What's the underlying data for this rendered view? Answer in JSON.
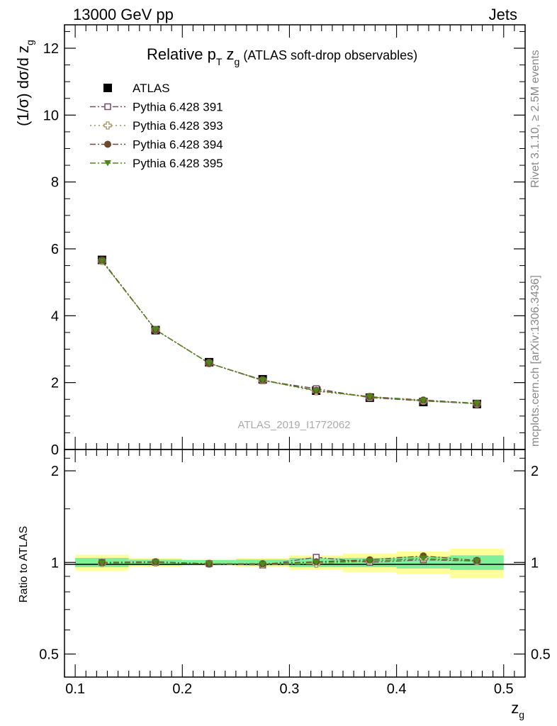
{
  "header": {
    "left": "13000 GeV pp",
    "right": "Jets"
  },
  "plot": {
    "title_main": "Relative p",
    "title_sub_T": "T",
    "title_z": " z",
    "title_sub_g": "g",
    "title_rest": " (ATLAS soft-drop observables)",
    "ylabel_main": "(1/σ) dσ/d z",
    "ylabel_sub": "g",
    "watermark": "ATLAS_2019_I1772062",
    "side_text_top": "Rivet 3.1.10, ≥ 2.5M events",
    "side_text_bottom": "mcplots.cern.ch [arXiv:1306.3436]"
  },
  "ratio": {
    "ylabel": "Ratio to ATLAS"
  },
  "chart_data": [
    {
      "type": "scatter",
      "panel": "main",
      "xlabel": "z",
      "xlabel_sub": "g",
      "ylim": [
        0,
        12.7
      ],
      "xlim": [
        0.09,
        0.52
      ],
      "yticks": [
        0,
        2,
        4,
        6,
        8,
        10,
        12
      ],
      "ytick_labels": [
        "0",
        "2",
        "4",
        "6",
        "8",
        "10",
        "12"
      ],
      "bin_edges": [
        0.1,
        0.15,
        0.2,
        0.25,
        0.3,
        0.35,
        0.4,
        0.45,
        0.5
      ],
      "x": [
        0.125,
        0.175,
        0.225,
        0.275,
        0.325,
        0.375,
        0.425,
        0.475
      ],
      "legend_position": "top-left",
      "series": [
        {
          "name": "ATLAS",
          "color": "#000000",
          "marker": "square-filled",
          "values": [
            5.67,
            3.57,
            2.61,
            2.1,
            1.76,
            1.55,
            1.42,
            1.36
          ]
        },
        {
          "name": "Pythia 6.428 391",
          "color": "#7b4a6b",
          "marker": "square-open",
          "line": "dash-dot",
          "values": [
            5.65,
            3.58,
            2.58,
            2.06,
            1.82,
            1.55,
            1.45,
            1.37
          ]
        },
        {
          "name": "Pythia 6.428 393",
          "color": "#a89060",
          "marker": "cross-open",
          "line": "dot",
          "values": [
            5.64,
            3.58,
            2.58,
            2.07,
            1.74,
            1.57,
            1.46,
            1.37
          ]
        },
        {
          "name": "Pythia 6.428 394",
          "color": "#6b4a2e",
          "marker": "circle-filled",
          "line": "dash-dot",
          "values": [
            5.66,
            3.58,
            2.58,
            2.08,
            1.77,
            1.58,
            1.48,
            1.38
          ]
        },
        {
          "name": "Pythia 6.428 395",
          "color": "#4a8a1a",
          "marker": "triangle-down-filled",
          "line": "dash-dot",
          "values": [
            5.63,
            3.58,
            2.58,
            2.07,
            1.76,
            1.57,
            1.46,
            1.37
          ]
        }
      ]
    },
    {
      "type": "scatter",
      "panel": "ratio",
      "ylabel": "Ratio to ATLAS",
      "xlabel": "z",
      "xlabel_sub": "g",
      "yscale": "log",
      "ylim": [
        0.42,
        2.35
      ],
      "xlim": [
        0.09,
        0.52
      ],
      "yticks": [
        0.5,
        1,
        2
      ],
      "ytick_labels": [
        "0.5",
        "1",
        "2"
      ],
      "xticks": [
        0.1,
        0.2,
        0.3,
        0.4,
        0.5
      ],
      "xtick_labels": [
        "0.1",
        "0.2",
        "0.3",
        "0.4",
        "0.5"
      ],
      "bin_edges": [
        0.1,
        0.15,
        0.2,
        0.25,
        0.3,
        0.35,
        0.4,
        0.45,
        0.5
      ],
      "x": [
        0.125,
        0.175,
        0.225,
        0.275,
        0.325,
        0.375,
        0.425,
        0.475
      ],
      "band_inner_halfwidth": [
        0.035,
        0.022,
        0.018,
        0.022,
        0.035,
        0.035,
        0.045,
        0.055
      ],
      "band_outer_halfwidth": [
        0.06,
        0.035,
        0.025,
        0.035,
        0.055,
        0.07,
        0.085,
        0.11
      ],
      "band_colors": {
        "inner": "#80ef9a",
        "outer": "#ffff99"
      },
      "series": [
        {
          "name": "Pythia 6.428 391",
          "color": "#7b4a6b",
          "marker": "square-open",
          "values": [
            1.0,
            1.0,
            0.99,
            0.98,
            1.04,
            1.0,
            1.02,
            1.01
          ]
        },
        {
          "name": "Pythia 6.428 393",
          "color": "#a89060",
          "marker": "cross-open",
          "values": [
            0.995,
            1.0,
            0.99,
            0.985,
            0.99,
            1.01,
            1.03,
            1.01
          ]
        },
        {
          "name": "Pythia 6.428 394",
          "color": "#6b4a2e",
          "marker": "circle-filled",
          "values": [
            1.0,
            1.005,
            0.99,
            0.99,
            1.005,
            1.02,
            1.05,
            1.015
          ]
        },
        {
          "name": "Pythia 6.428 395",
          "color": "#4a8a1a",
          "marker": "triangle-down-filled",
          "values": [
            0.995,
            1.0,
            0.99,
            0.985,
            1.0,
            1.01,
            1.03,
            1.01
          ]
        }
      ]
    }
  ]
}
